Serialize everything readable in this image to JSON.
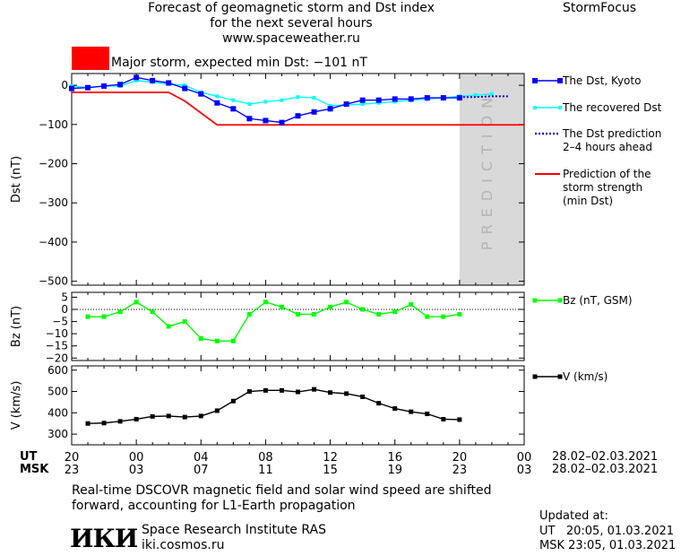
{
  "header": {
    "title_lines": [
      "Forecast of geomagnetic storm and Dst index",
      "for the next several hours",
      "www.spaceweather.ru"
    ],
    "brand": "StormFocus"
  },
  "alert": {
    "color": "#ff0000",
    "text": "Major storm, expected min Dst: −101 nT"
  },
  "legend": {
    "dst": "The Dst, Kyoto",
    "recovered": "The recovered Dst",
    "prediction_lines": [
      "The Dst prediction",
      "2–4 hours ahead"
    ],
    "strength_lines": [
      "Prediction of the",
      "storm strength",
      "(min Dst)"
    ],
    "bz": "Bz (nT, GSM)",
    "v": "V (km/s)"
  },
  "prediction_label": "PREDICTION",
  "time_axis": {
    "ut_label": "UT",
    "msk_label": "MSK",
    "ut_ticks": [
      "20",
      "00",
      "04",
      "08",
      "12",
      "16",
      "20",
      "00"
    ],
    "msk_ticks": [
      "23",
      "03",
      "07",
      "11",
      "15",
      "19",
      "23",
      "03"
    ],
    "date_range": "28.02–02.03.2021"
  },
  "footnote": [
    "Real-time DSCOVR magnetic field and solar wind speed are shifted",
    "forward, accounting for L1-Earth propagation"
  ],
  "institute": {
    "logo": "ИКИ",
    "name": "Space Research Institute RAS",
    "url": "iki.cosmos.ru"
  },
  "updated": {
    "label": "Updated at:",
    "ut": "UT   20:05, 01.03.2021",
    "msk": "MSK 23:05, 01.03.2021"
  },
  "colors": {
    "dst": "#0000ff",
    "recovered": "#00ffff",
    "prediction": "#0000cc",
    "strength": "#ff0000",
    "bz": "#00ff00",
    "v": "#000000",
    "prediction_zone": "#d9d9d9"
  },
  "chart_data": [
    {
      "type": "line",
      "ylabel": "Dst (nT)",
      "x_unit": "hours since 20 UT",
      "ylim": [
        -510,
        30
      ],
      "yticks": [
        0,
        -100,
        -200,
        -300,
        -400,
        -500
      ],
      "xlim": [
        0,
        28
      ],
      "prediction_zone_hours": [
        24,
        28
      ],
      "series": [
        {
          "name": "The Dst, Kyoto",
          "x": [
            0,
            1,
            2,
            3,
            4,
            5,
            6,
            7,
            8,
            9,
            10,
            11,
            12,
            13,
            14,
            15,
            16,
            17,
            18,
            19,
            20,
            21,
            22,
            23,
            24
          ],
          "values": [
            -8,
            -6,
            -2,
            2,
            20,
            12,
            6,
            -8,
            -22,
            -45,
            -60,
            -85,
            -90,
            -95,
            -78,
            -68,
            -60,
            -48,
            -38,
            -38,
            -35,
            -35,
            -32,
            -32,
            -32
          ]
        },
        {
          "name": "The recovered Dst",
          "x": [
            0,
            1,
            2,
            3,
            4,
            5,
            6,
            7,
            8,
            9,
            10,
            11,
            12,
            13,
            14,
            15,
            16,
            17,
            18,
            19,
            20,
            21,
            22,
            23,
            24,
            25,
            26
          ],
          "values": [
            -2,
            -6,
            -2,
            -2,
            12,
            8,
            3,
            0,
            -18,
            -28,
            -38,
            -48,
            -42,
            -38,
            -30,
            -32,
            -52,
            -50,
            -48,
            -45,
            -42,
            -38,
            -35,
            -32,
            -28,
            -25,
            -22
          ]
        },
        {
          "name": "The Dst prediction 2–4 hours ahead",
          "x": [
            24,
            25,
            26,
            27
          ],
          "values": [
            -30,
            -30,
            -28,
            -28
          ]
        },
        {
          "name": "Prediction of the storm strength (min Dst)",
          "x": [
            0,
            6,
            7,
            9,
            28
          ],
          "values": [
            -18,
            -18,
            -40,
            -101,
            -101
          ]
        }
      ]
    },
    {
      "type": "line",
      "ylabel": "Bz (nT)",
      "ylim": [
        -21,
        7
      ],
      "yticks": [
        5,
        0,
        -5,
        -10,
        -15,
        -20
      ],
      "series": [
        {
          "name": "Bz (nT, GSM)",
          "x": [
            1,
            2,
            3,
            4,
            5,
            6,
            7,
            8,
            9,
            10,
            11,
            12,
            13,
            14,
            15,
            16,
            17,
            18,
            19,
            20,
            21,
            22,
            23,
            24
          ],
          "values": [
            -3,
            -3,
            -1,
            3,
            -1,
            -7,
            -5,
            -12,
            -13,
            -13,
            -2,
            3,
            1,
            -2,
            -2,
            1,
            3,
            0,
            -2,
            -1,
            2,
            -3,
            -3,
            -2
          ]
        }
      ]
    },
    {
      "type": "line",
      "ylabel": "V (km/s)",
      "ylim": [
        250,
        620
      ],
      "yticks": [
        600,
        500,
        400,
        300
      ],
      "series": [
        {
          "name": "V (km/s)",
          "x": [
            1,
            2,
            3,
            4,
            5,
            6,
            7,
            8,
            9,
            10,
            11,
            12,
            13,
            14,
            15,
            16,
            17,
            18,
            19,
            20,
            21,
            22,
            23,
            24
          ],
          "values": [
            350,
            352,
            360,
            370,
            383,
            385,
            380,
            385,
            410,
            455,
            500,
            505,
            505,
            498,
            510,
            495,
            490,
            475,
            445,
            420,
            405,
            395,
            370,
            368
          ]
        }
      ]
    }
  ]
}
